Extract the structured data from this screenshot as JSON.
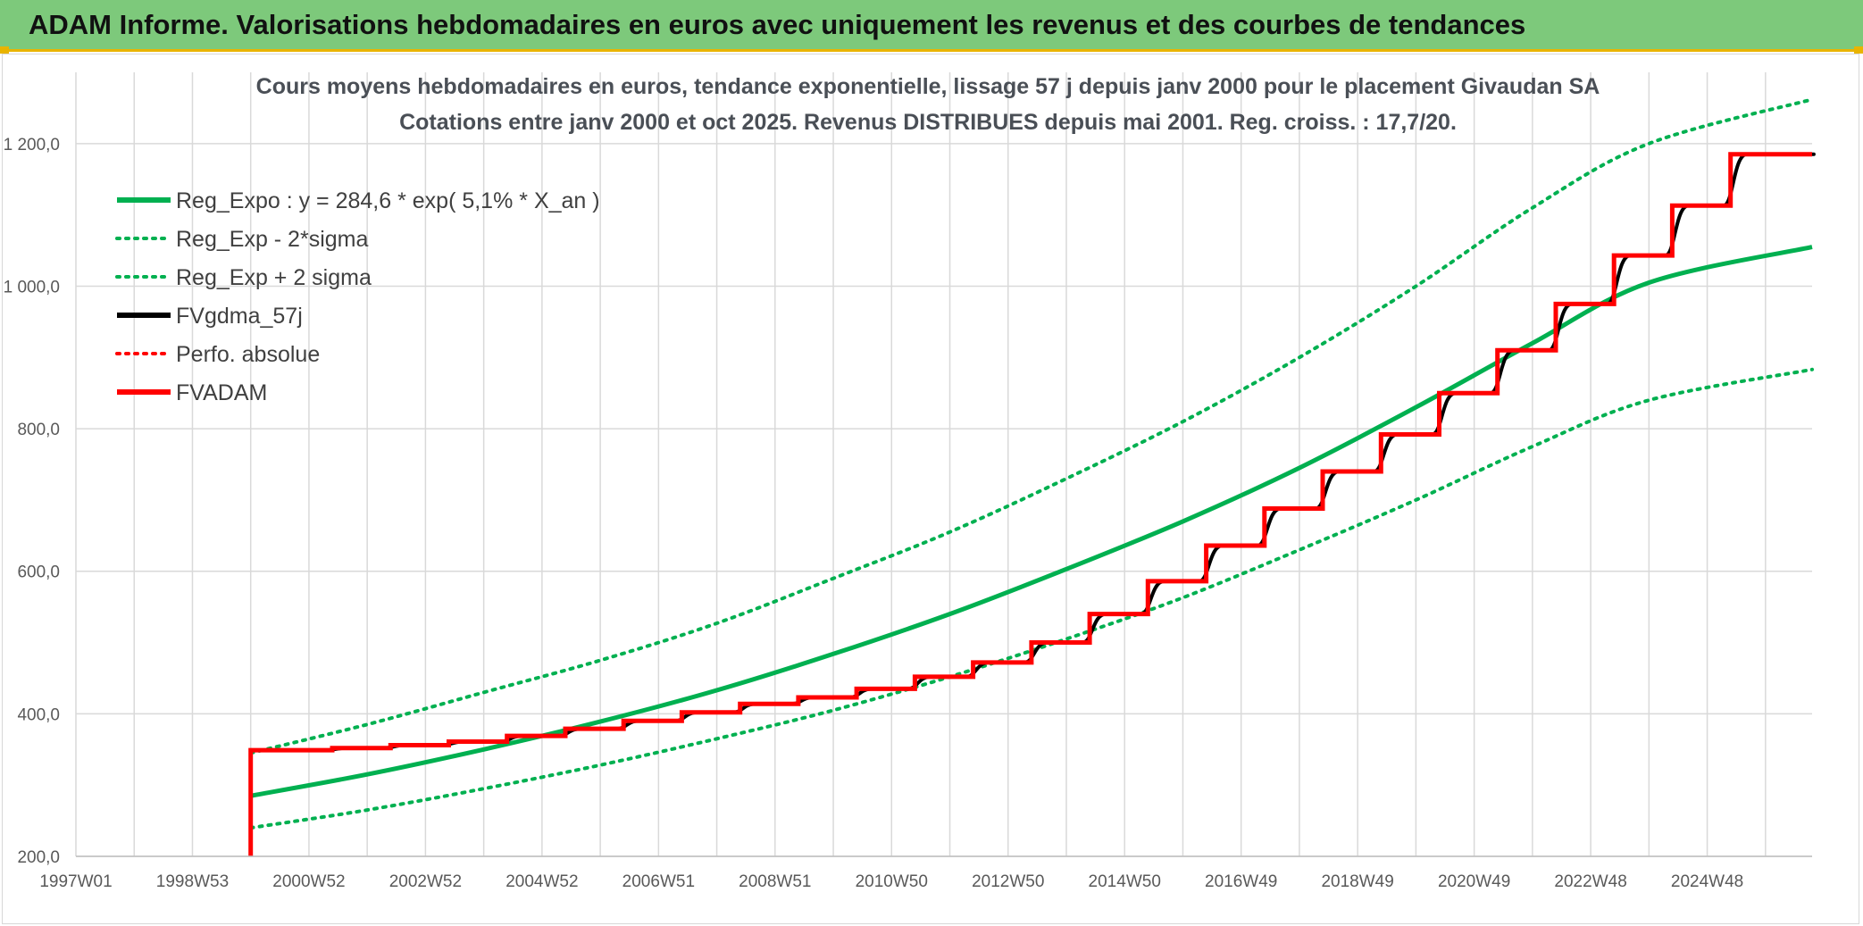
{
  "banner": {
    "title": "ADAM Informe. Valorisations hebdomadaires en euros avec uniquement les revenus et des courbes de tendances"
  },
  "colors": {
    "banner_bg": "#7dc97b",
    "banner_border": "#e9b400",
    "trend": "#00b050",
    "fvgdma": "#000000",
    "fvadam": "#ff0000",
    "grid": "#d9d9d9"
  },
  "chart_data": {
    "type": "line",
    "title_line1": "Cours moyens hebdomadaires en euros, tendance exponentielle, lissage 57 j depuis janv 2000 pour le placement Givaudan SA",
    "title_line2": "Cotations entre janv 2000 et oct 2025. Revenus DISTRIBUES depuis mai 2001. Reg. croiss. : 17,7/20.",
    "x_axis": {
      "unit": "year",
      "min": 1997.0,
      "max": 2026.8,
      "tick_labels": [
        "1997W01",
        "1998W53",
        "2000W52",
        "2002W52",
        "2004W52",
        "2006W51",
        "2008W51",
        "2010W50",
        "2012W50",
        "2014W50",
        "2016W49",
        "2018W49",
        "2020W49",
        "2022W48",
        "2024W48"
      ],
      "tick_years": [
        1997.0,
        1999.0,
        2001.0,
        2003.0,
        2005.0,
        2007.0,
        2009.0,
        2011.0,
        2013.0,
        2015.0,
        2017.0,
        2019.0,
        2021.0,
        2023.0,
        2025.0
      ]
    },
    "y_axis": {
      "min": 200,
      "max": 1300,
      "tick_values": [
        200,
        400,
        600,
        800,
        1000,
        1200
      ],
      "tick_labels": [
        "200,0",
        "400,0",
        "600,0",
        "800,0",
        "1 000,0",
        "1 200,0"
      ]
    },
    "grid": true,
    "legend_position": "top-left",
    "legend": [
      {
        "label": "Reg_Expo : y = 284,6 * exp( 5,1% *  X_an )",
        "color": "#00b050",
        "style": "solid"
      },
      {
        "label": "Reg_Exp - 2*sigma",
        "color": "#00b050",
        "style": "dotted"
      },
      {
        "label": "Reg_Exp + 2 sigma",
        "color": "#00b050",
        "style": "dotted"
      },
      {
        "label": "FVgdma_57j",
        "color": "#000000",
        "style": "solid"
      },
      {
        "label": "Perfo. absolue",
        "color": "#ff0000",
        "style": "dotted"
      },
      {
        "label": "FVADAM",
        "color": "#ff0000",
        "style": "solid"
      }
    ],
    "series": [
      {
        "name": "Reg_Expo : y = 284,6 * exp( 5,1% *  X_an )",
        "x": [
          2000.0,
          2002.0,
          2004.0,
          2006.0,
          2008.0,
          2010.0,
          2012.0,
          2014.0,
          2016.0,
          2018.0,
          2020.0,
          2022.0,
          2024.0,
          2026.8
        ],
        "y": [
          285,
          315,
          350,
          389,
          433,
          484,
          540,
          603,
          670,
          745,
          830,
          920,
          1005,
          1055
        ]
      },
      {
        "name": "Reg_Exp - 2*sigma",
        "x": [
          2000.0,
          2002.0,
          2004.0,
          2006.0,
          2008.0,
          2010.0,
          2012.0,
          2014.0,
          2016.0,
          2018.0,
          2020.0,
          2022.0,
          2024.0,
          2026.8
        ],
        "y": [
          240,
          265,
          295,
          328,
          365,
          405,
          452,
          505,
          563,
          630,
          700,
          775,
          840,
          883
        ]
      },
      {
        "name": "Reg_Exp + 2 sigma",
        "x": [
          2000.0,
          2002.0,
          2004.0,
          2006.0,
          2008.0,
          2010.0,
          2012.0,
          2014.0,
          2016.0,
          2018.0,
          2020.0,
          2022.0,
          2024.0,
          2026.8
        ],
        "y": [
          345,
          385,
          430,
          475,
          527,
          590,
          655,
          730,
          810,
          900,
          1000,
          1110,
          1200,
          1262
        ]
      },
      {
        "name": "FVADAM",
        "x": [
          2000.0,
          2000.0,
          2001.4,
          2002.4,
          2003.4,
          2004.4,
          2005.4,
          2006.4,
          2007.4,
          2008.4,
          2009.4,
          2010.4,
          2011.4,
          2012.4,
          2013.4,
          2014.4,
          2015.4,
          2016.4,
          2017.4,
          2018.4,
          2019.4,
          2020.4,
          2021.4,
          2022.4,
          2023.4,
          2024.4,
          2025.4,
          2026.8
        ],
        "y": [
          200,
          349,
          352,
          356,
          361,
          369,
          379,
          390,
          402,
          414,
          423,
          435,
          452,
          472,
          500,
          540,
          586,
          636,
          688,
          740,
          792,
          850,
          910,
          975,
          1043,
          1113,
          1185,
          1185
        ]
      }
    ]
  }
}
